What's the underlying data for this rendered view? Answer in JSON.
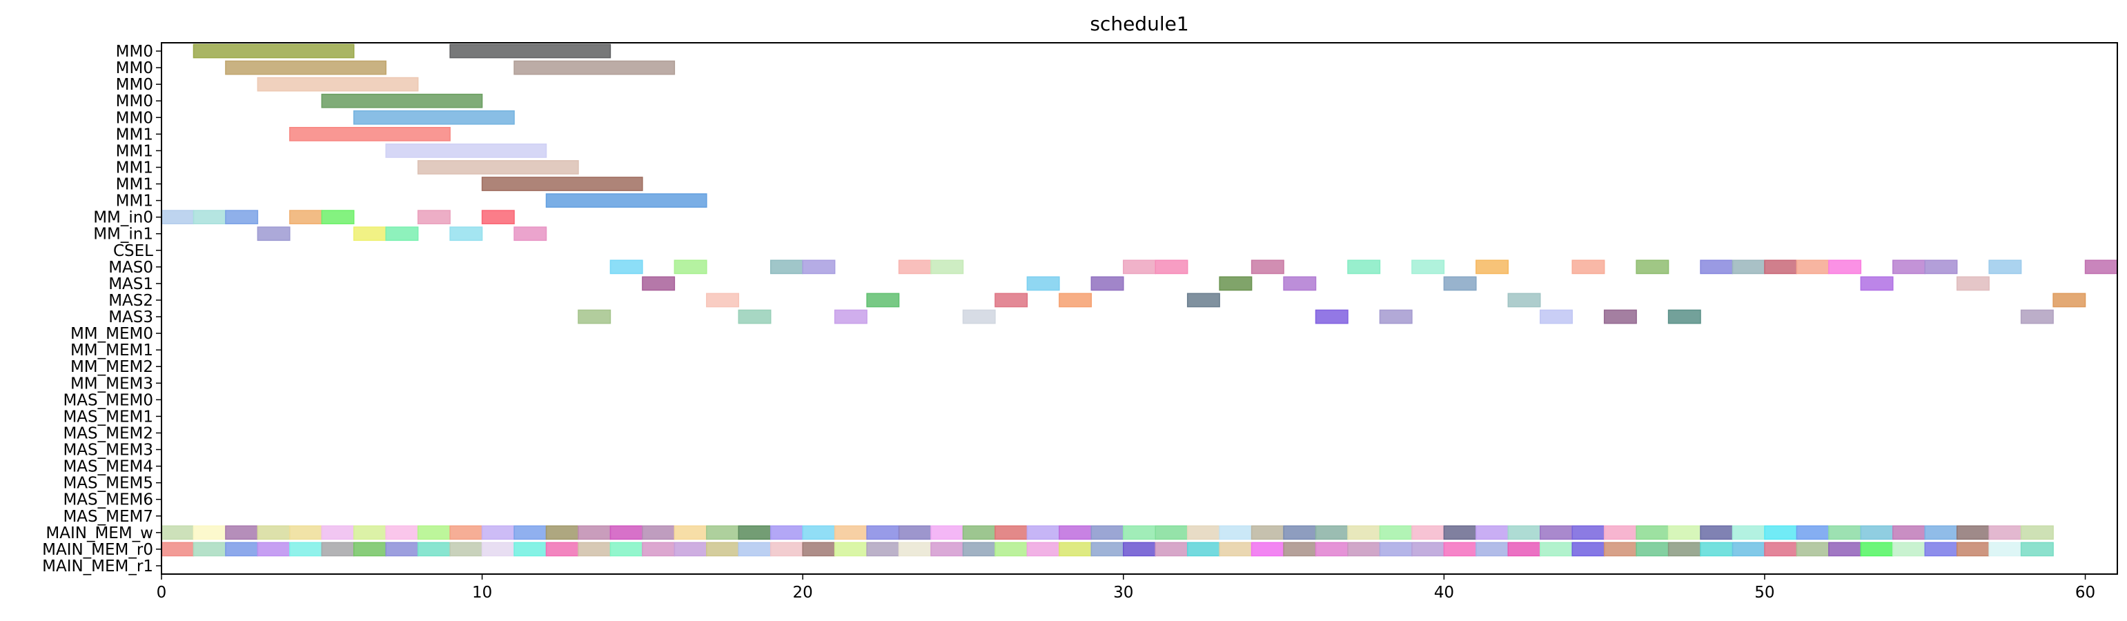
{
  "chart_data": {
    "type": "gantt",
    "title": "schedule1",
    "xlabel": "",
    "ylabel": "",
    "xlim": [
      0,
      61
    ],
    "x_ticks": [
      0,
      10,
      20,
      30,
      40,
      50,
      60
    ],
    "grid": false,
    "legend": "none",
    "resources": [
      "MM0",
      "MM0",
      "MM0",
      "MM0",
      "MM0",
      "MM1",
      "MM1",
      "MM1",
      "MM1",
      "MM1",
      "MM_in0",
      "MM_in1",
      "CSEL",
      "MAS0",
      "MAS1",
      "MAS2",
      "MAS3",
      "MM_MEM0",
      "MM_MEM1",
      "MM_MEM2",
      "MM_MEM3",
      "MAS_MEM0",
      "MAS_MEM1",
      "MAS_MEM2",
      "MAS_MEM3",
      "MAS_MEM4",
      "MAS_MEM5",
      "MAS_MEM6",
      "MAS_MEM7",
      "MAIN_MEM_w",
      "MAIN_MEM_r0",
      "MAIN_MEM_r1"
    ],
    "tasks": [
      {
        "row": 0,
        "start": 1,
        "end": 6,
        "color": "#9aa849"
      },
      {
        "row": 0,
        "start": 9,
        "end": 14,
        "color": "#5f6062"
      },
      {
        "row": 1,
        "start": 2,
        "end": 7,
        "color": "#c0a56c"
      },
      {
        "row": 1,
        "start": 11,
        "end": 16,
        "color": "#b09e96"
      },
      {
        "row": 2,
        "start": 3,
        "end": 8,
        "color": "#edc9b3"
      },
      {
        "row": 3,
        "start": 5,
        "end": 10,
        "color": "#6a9e60"
      },
      {
        "row": 4,
        "start": 6,
        "end": 11,
        "color": "#74b3e0"
      },
      {
        "row": 5,
        "start": 4,
        "end": 9,
        "color": "#f88580"
      },
      {
        "row": 6,
        "start": 7,
        "end": 12,
        "color": "#cfd0f5"
      },
      {
        "row": 7,
        "start": 8,
        "end": 13,
        "color": "#dcc1b4"
      },
      {
        "row": 8,
        "start": 10,
        "end": 15,
        "color": "#a06e60"
      },
      {
        "row": 9,
        "start": 12,
        "end": 17,
        "color": "#63a0e0"
      },
      {
        "row": 10,
        "start": 0,
        "end": 1,
        "color": "#b3ccec"
      },
      {
        "row": 10,
        "start": 1,
        "end": 2,
        "color": "#a8e0dc"
      },
      {
        "row": 10,
        "start": 2,
        "end": 3,
        "color": "#7ba2e6"
      },
      {
        "row": 10,
        "start": 4,
        "end": 5,
        "color": "#f0b070"
      },
      {
        "row": 10,
        "start": 5,
        "end": 6,
        "color": "#6ef06a"
      },
      {
        "row": 10,
        "start": 8,
        "end": 9,
        "color": "#eaa0bc"
      },
      {
        "row": 10,
        "start": 10,
        "end": 11,
        "color": "#fa6674"
      },
      {
        "row": 11,
        "start": 3,
        "end": 4,
        "color": "#9d9ad2"
      },
      {
        "row": 11,
        "start": 6,
        "end": 7,
        "color": "#eef070"
      },
      {
        "row": 11,
        "start": 7,
        "end": 8,
        "color": "#7af0b0"
      },
      {
        "row": 11,
        "start": 9,
        "end": 10,
        "color": "#94e0ee"
      },
      {
        "row": 11,
        "start": 11,
        "end": 12,
        "color": "#e894c4"
      },
      {
        "row": 13,
        "start": 14,
        "end": 15,
        "color": "#78d8f6"
      },
      {
        "row": 13,
        "start": 16,
        "end": 17,
        "color": "#a8f090"
      },
      {
        "row": 13,
        "start": 19,
        "end": 20,
        "color": "#8fbcc0"
      },
      {
        "row": 13,
        "start": 20,
        "end": 21,
        "color": "#a89ee0"
      },
      {
        "row": 13,
        "start": 23,
        "end": 24,
        "color": "#f8b4b0"
      },
      {
        "row": 13,
        "start": 24,
        "end": 25,
        "color": "#c6eab8"
      },
      {
        "row": 13,
        "start": 30,
        "end": 31,
        "color": "#eda4c0"
      },
      {
        "row": 13,
        "start": 31,
        "end": 32,
        "color": "#f68cb8"
      },
      {
        "row": 13,
        "start": 34,
        "end": 35,
        "color": "#c97aa4"
      },
      {
        "row": 13,
        "start": 37,
        "end": 38,
        "color": "#86ecc4"
      },
      {
        "row": 13,
        "start": 39,
        "end": 40,
        "color": "#a2f0d6"
      },
      {
        "row": 13,
        "start": 41,
        "end": 42,
        "color": "#f6b860"
      },
      {
        "row": 13,
        "start": 44,
        "end": 45,
        "color": "#f8ac98"
      },
      {
        "row": 13,
        "start": 46,
        "end": 47,
        "color": "#8fbd70"
      },
      {
        "row": 13,
        "start": 48,
        "end": 49,
        "color": "#8888de"
      },
      {
        "row": 13,
        "start": 49,
        "end": 50,
        "color": "#9ab6bc"
      },
      {
        "row": 13,
        "start": 50,
        "end": 51,
        "color": "#c86878"
      },
      {
        "row": 13,
        "start": 51,
        "end": 52,
        "color": "#f6a890"
      },
      {
        "row": 13,
        "start": 52,
        "end": 53,
        "color": "#fa7ee0"
      },
      {
        "row": 13,
        "start": 54,
        "end": 55,
        "color": "#b880d0"
      },
      {
        "row": 13,
        "start": 55,
        "end": 56,
        "color": "#a68ed2"
      },
      {
        "row": 13,
        "start": 57,
        "end": 58,
        "color": "#9ccbec"
      },
      {
        "row": 13,
        "start": 60,
        "end": 61,
        "color": "#c070b0"
      },
      {
        "row": 14,
        "start": 15,
        "end": 16,
        "color": "#a8609a"
      },
      {
        "row": 14,
        "start": 27,
        "end": 28,
        "color": "#7cd0f0"
      },
      {
        "row": 14,
        "start": 29,
        "end": 30,
        "color": "#9070c0"
      },
      {
        "row": 14,
        "start": 33,
        "end": 34,
        "color": "#6a9450"
      },
      {
        "row": 14,
        "start": 35,
        "end": 36,
        "color": "#b07ad2"
      },
      {
        "row": 14,
        "start": 40,
        "end": 41,
        "color": "#86a6c4"
      },
      {
        "row": 14,
        "start": 53,
        "end": 54,
        "color": "#b070e4"
      },
      {
        "row": 14,
        "start": 56,
        "end": 57,
        "color": "#e0bcbe"
      },
      {
        "row": 15,
        "start": 17,
        "end": 18,
        "color": "#f8c4b8"
      },
      {
        "row": 15,
        "start": 22,
        "end": 23,
        "color": "#60c070"
      },
      {
        "row": 15,
        "start": 26,
        "end": 27,
        "color": "#de7484"
      },
      {
        "row": 15,
        "start": 28,
        "end": 29,
        "color": "#f6a070"
      },
      {
        "row": 15,
        "start": 32,
        "end": 33,
        "color": "#6a7e8e"
      },
      {
        "row": 15,
        "start": 42,
        "end": 43,
        "color": "#a0c4c4"
      },
      {
        "row": 15,
        "start": 59,
        "end": 60,
        "color": "#de9a5c"
      },
      {
        "row": 16,
        "start": 13,
        "end": 14,
        "color": "#a4c48c"
      },
      {
        "row": 16,
        "start": 18,
        "end": 19,
        "color": "#98d0b8"
      },
      {
        "row": 16,
        "start": 21,
        "end": 22,
        "color": "#c8a0ea"
      },
      {
        "row": 16,
        "start": 25,
        "end": 26,
        "color": "#d0d6e0"
      },
      {
        "row": 16,
        "start": 36,
        "end": 37,
        "color": "#8060e0"
      },
      {
        "row": 16,
        "start": 38,
        "end": 39,
        "color": "#a49ad0"
      },
      {
        "row": 16,
        "start": 43,
        "end": 44,
        "color": "#c0c6f4"
      },
      {
        "row": 16,
        "start": 45,
        "end": 46,
        "color": "#946890"
      },
      {
        "row": 16,
        "start": 47,
        "end": 48,
        "color": "#5a9088"
      },
      {
        "row": 16,
        "start": 58,
        "end": 59,
        "color": "#b0a0c0"
      }
    ],
    "main_mem_w_colors": [
      "#c4dcae",
      "#fbf8c4",
      "#a87aae",
      "#d7dc9c",
      "#eede98",
      "#eebcf0",
      "#d6f098",
      "#f9bce8",
      "#b2f48a",
      "#f4a084",
      "#c4b0f4",
      "#7ca2ec",
      "#a0986a",
      "#c08cb0",
      "#d058c0",
      "#b48cb4",
      "#f6d898",
      "#a0c88c",
      "#5a8c5c",
      "#a698f4",
      "#7ed8f4",
      "#f6c894",
      "#868ae4",
      "#8c84c4",
      "#f2aaf4",
      "#8cbc7c",
      "#de7474",
      "#bca8f4",
      "#be6cde",
      "#8a96cc",
      "#90eaac",
      "#82de9a",
      "#e4d6bc",
      "#c2e4f6",
      "#bcb6a0",
      "#7a8cb4",
      "#8ab2a4",
      "#e4e4b0",
      "#a4f2a8",
      "#f6b8cc",
      "#6a6a8e",
      "#c0a0f2",
      "#a0d6cc",
      "#9a74c4",
      "#7864de",
      "#f6a8c8",
      "#8cdc90",
      "#d0f4ae",
      "#6a6ca6",
      "#a6f0dc",
      "#58e8f4",
      "#70a0f0",
      "#8cdca4",
      "#7cc6dc",
      "#c07ab8",
      "#7cb0e4",
      "#8e7674",
      "#deacc8",
      "#c6dca8"
    ],
    "main_mem_r0_colors": [
      "#f08a84",
      "#a8dcc0",
      "#7a9ae8",
      "#bc8ef0",
      "#7ef0e8",
      "#a6a6a8",
      "#74c464",
      "#8c8ed8",
      "#74e0c8",
      "#c0cab0",
      "#e4d8f0",
      "#70f0e0",
      "#f070b4",
      "#d0c0a8",
      "#80f4c4",
      "#d698c8",
      "#c6a0dc",
      "#ccc48c",
      "#b0c8f0",
      "#f0c4c8",
      "#a07a74",
      "#d4f498",
      "#b0a4c0",
      "#eae6d2",
      "#d49ad0",
      "#90a4b8",
      "#b0ee8c",
      "#eea4e0",
      "#d8e66c",
      "#8ea6d0",
      "#6a54d0",
      "#d098c0",
      "#5cd4d8",
      "#e6d0a4",
      "#f070f0",
      "#a89088",
      "#e080d0",
      "#c898c0",
      "#a8a8e4",
      "#b8a0d8",
      "#f470c0",
      "#a4b0e4",
      "#e858b8",
      "#a4f0c4",
      "#7060e0",
      "#d09074",
      "#6ec890",
      "#8a9a80",
      "#5cdcd8",
      "#6cc0e4",
      "#de7088",
      "#a8c094",
      "#9060b8",
      "#52f462",
      "#c0f0c8",
      "#7a7ae8",
      "#c4846a",
      "#d8f4f4",
      "#78dcc4"
    ]
  }
}
